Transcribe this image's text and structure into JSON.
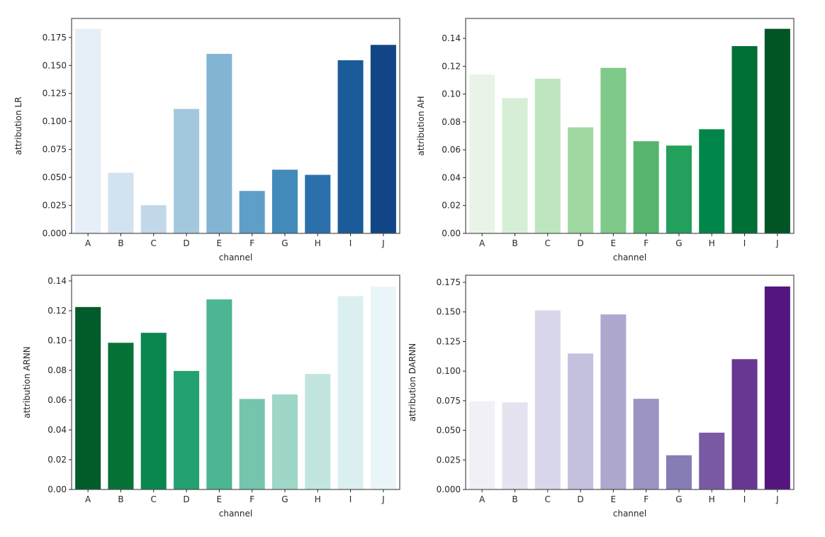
{
  "chart_data": [
    {
      "type": "bar",
      "title": "",
      "xlabel": "channel",
      "ylabel": "attribution LR",
      "categories": [
        "A",
        "B",
        "C",
        "D",
        "E",
        "F",
        "G",
        "H",
        "I",
        "J"
      ],
      "values": [
        0.183,
        0.0545,
        0.0255,
        0.1115,
        0.1607,
        0.0382,
        0.0572,
        0.0526,
        0.155,
        0.1687
      ],
      "ylim": [
        0,
        0.192
      ],
      "yticks": [
        0.0,
        0.025,
        0.05,
        0.075,
        0.1,
        0.125,
        0.15,
        0.175
      ],
      "ytick_labels": [
        "0.000",
        "0.025",
        "0.050",
        "0.075",
        "0.100",
        "0.125",
        "0.150",
        "0.175"
      ],
      "palette": "Blues",
      "colors": [
        "#e6eef7",
        "#d3e2ef",
        "#c2d7e8",
        "#a3c8dc",
        "#82b5d3",
        "#5f9ec8",
        "#418aba",
        "#2c70ab",
        "#1b5b9a",
        "#124585"
      ],
      "grid": false,
      "legend": "none"
    },
    {
      "type": "bar",
      "title": "",
      "xlabel": "channel",
      "ylabel": "attribution AH",
      "categories": [
        "A",
        "B",
        "C",
        "D",
        "E",
        "F",
        "G",
        "H",
        "I",
        "J"
      ],
      "values": [
        0.1144,
        0.0974,
        0.1113,
        0.0764,
        0.1191,
        0.0664,
        0.0633,
        0.075,
        0.1347,
        0.1471
      ],
      "ylim": [
        0,
        0.1543
      ],
      "yticks": [
        0.0,
        0.02,
        0.04,
        0.06,
        0.08,
        0.1,
        0.12,
        0.14
      ],
      "ytick_labels": [
        "0.00",
        "0.02",
        "0.04",
        "0.06",
        "0.08",
        "0.10",
        "0.12",
        "0.14"
      ],
      "palette": "Greens",
      "colors": [
        "#e8f5e6",
        "#d6eed5",
        "#bee5bd",
        "#9fd8a0",
        "#7fc98a",
        "#56b46f",
        "#22a05c",
        "#00854a",
        "#006f37",
        "#005426"
      ],
      "grid": false,
      "legend": "none"
    },
    {
      "type": "bar",
      "title": "",
      "xlabel": "channel",
      "ylabel": "attribution ARNN",
      "categories": [
        "A",
        "B",
        "C",
        "D",
        "E",
        "F",
        "G",
        "H",
        "I",
        "J"
      ],
      "values": [
        0.1227,
        0.0987,
        0.1054,
        0.0798,
        0.1278,
        0.061,
        0.064,
        0.0778,
        0.13,
        0.1365
      ],
      "ylim": [
        0,
        0.1438
      ],
      "yticks": [
        0.0,
        0.02,
        0.04,
        0.06,
        0.08,
        0.1,
        0.12,
        0.14
      ],
      "ytick_labels": [
        "0.00",
        "0.02",
        "0.04",
        "0.06",
        "0.08",
        "0.10",
        "0.12",
        "0.14"
      ],
      "palette": "BuGn_r",
      "colors": [
        "#025b2b",
        "#077236",
        "#09874e",
        "#24a171",
        "#4cb593",
        "#75c5ae",
        "#9ed6c7",
        "#c2e6df",
        "#dbeff0",
        "#eaf5f9"
      ],
      "grid": false,
      "legend": "none"
    },
    {
      "type": "bar",
      "title": "",
      "xlabel": "channel",
      "ylabel": "attribution DARNN",
      "categories": [
        "A",
        "B",
        "C",
        "D",
        "E",
        "F",
        "G",
        "H",
        "I",
        "J"
      ],
      "values": [
        0.0749,
        0.0739,
        0.1516,
        0.1152,
        0.1482,
        0.0769,
        0.0292,
        0.0483,
        0.1104,
        0.1718
      ],
      "ylim": [
        0,
        0.181
      ],
      "yticks": [
        0.0,
        0.025,
        0.05,
        0.075,
        0.1,
        0.125,
        0.15,
        0.175
      ],
      "ytick_labels": [
        "0.000",
        "0.025",
        "0.050",
        "0.075",
        "0.100",
        "0.125",
        "0.150",
        "0.175"
      ],
      "palette": "Purples",
      "colors": [
        "#f2f0f7",
        "#e6e3f0",
        "#d8d7e9",
        "#c4c1de",
        "#aea8ce",
        "#9b93c1",
        "#877db5",
        "#7a5aa3",
        "#673891",
        "#54157f"
      ],
      "grid": false,
      "legend": "none"
    }
  ]
}
